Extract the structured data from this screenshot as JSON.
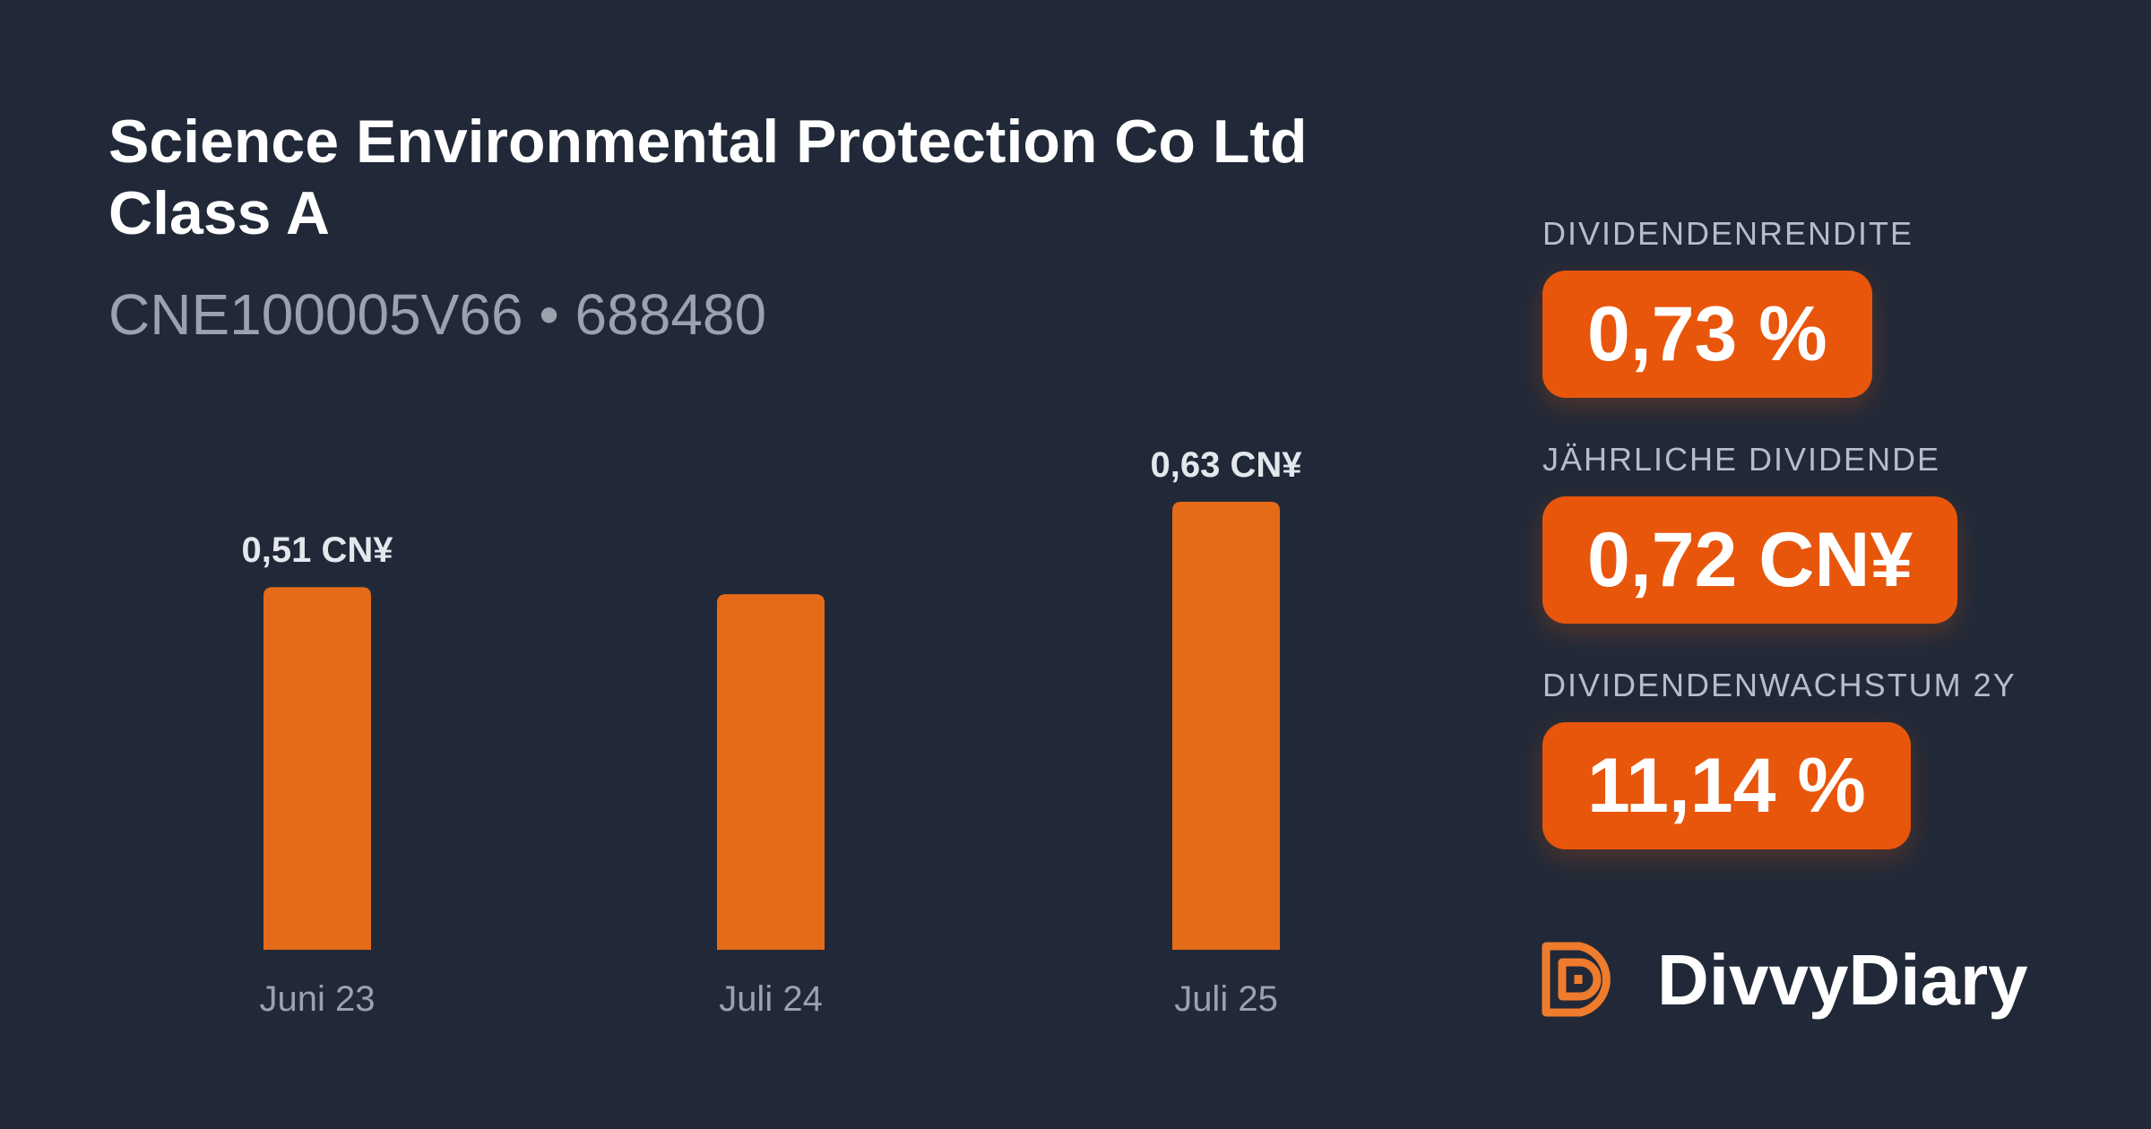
{
  "header": {
    "title": "Science Environmental Protection Co Ltd Class A",
    "subtitle": "CNE100005V66 • 688480"
  },
  "colors": {
    "background": "#212938",
    "bar": "#e56b19",
    "accent": "#e8560c"
  },
  "chart_data": {
    "type": "bar",
    "categories": [
      "Juni 23",
      "Juli 24",
      "Juli 25"
    ],
    "values": [
      0.51,
      0.5,
      0.63
    ],
    "data_labels": [
      "0,51 CN¥",
      "",
      "0,63 CN¥"
    ],
    "unit": "CN¥",
    "ylim": [
      0,
      0.63
    ],
    "grid": false,
    "title": "",
    "xlabel": "",
    "ylabel": ""
  },
  "metrics": [
    {
      "label": "DIVIDENDENRENDITE",
      "value": "0,73 %"
    },
    {
      "label": "JÄHRLICHE DIVIDENDE",
      "value": "0,72 CN¥"
    },
    {
      "label": "DIVIDENDENWACHSTUM 2Y",
      "value": "11,14 %"
    }
  ],
  "brand": {
    "name": "DivvyDiary",
    "logo_icon": "divvydiary-logo-icon"
  }
}
